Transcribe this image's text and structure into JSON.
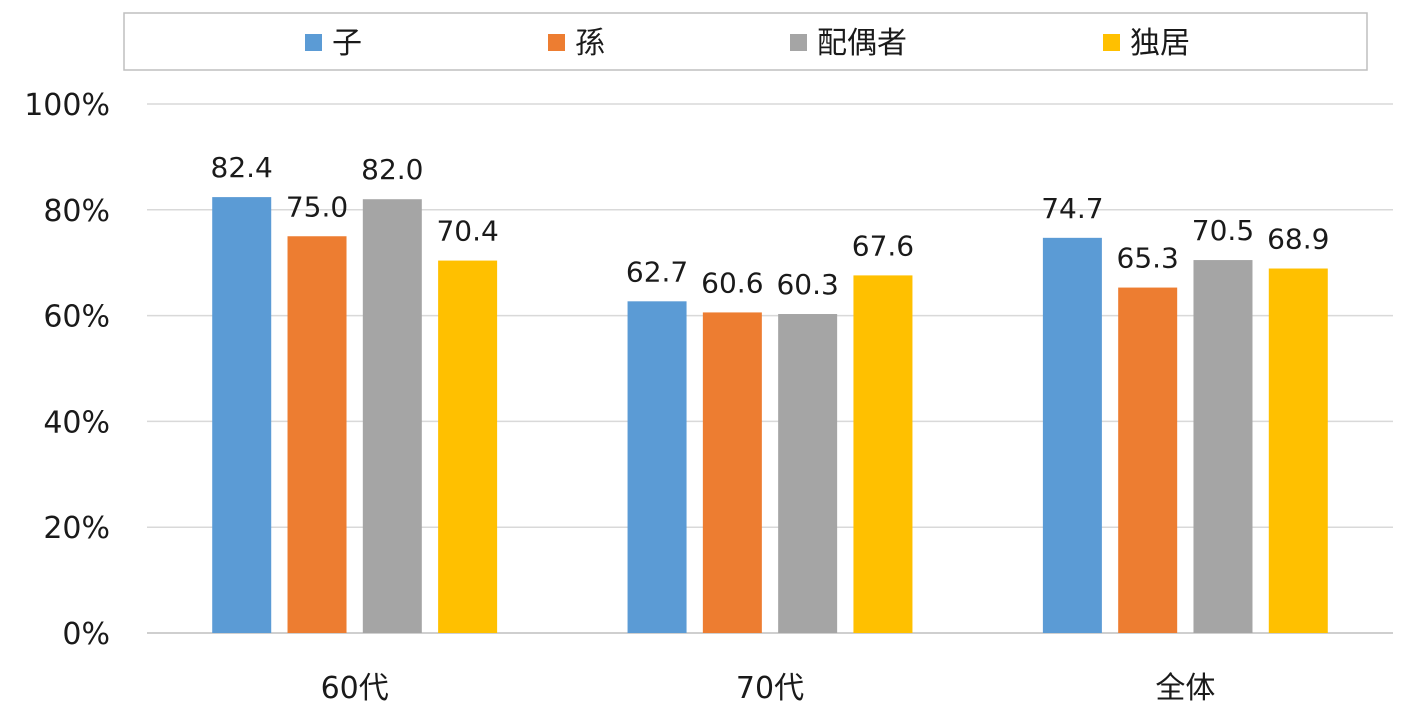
{
  "chart_data": {
    "type": "bar",
    "categories": [
      "60代",
      "70代",
      "全体"
    ],
    "series": [
      {
        "name": "子",
        "color": "#5B9BD5",
        "values": [
          82.4,
          62.7,
          74.7
        ]
      },
      {
        "name": "孫",
        "color": "#ED7D31",
        "values": [
          75.0,
          60.6,
          65.3
        ]
      },
      {
        "name": "配偶者",
        "color": "#A5A5A5",
        "values": [
          82.0,
          60.3,
          70.5
        ]
      },
      {
        "name": "独居",
        "color": "#FFC000",
        "values": [
          70.4,
          67.6,
          68.9
        ]
      }
    ],
    "data_labels": [
      [
        "82.4",
        "62.7",
        "74.7"
      ],
      [
        "75.0",
        "60.6",
        "65.3"
      ],
      [
        "82.0",
        "60.3",
        "70.5"
      ],
      [
        "70.4",
        "67.6",
        "68.9"
      ]
    ],
    "y_ticks": [
      "0%",
      "20%",
      "40%",
      "60%",
      "80%",
      "100%"
    ],
    "y_tick_values": [
      0,
      20,
      40,
      60,
      80,
      100
    ],
    "ylim": [
      0,
      100
    ],
    "grid": true,
    "legend_position": "top"
  }
}
